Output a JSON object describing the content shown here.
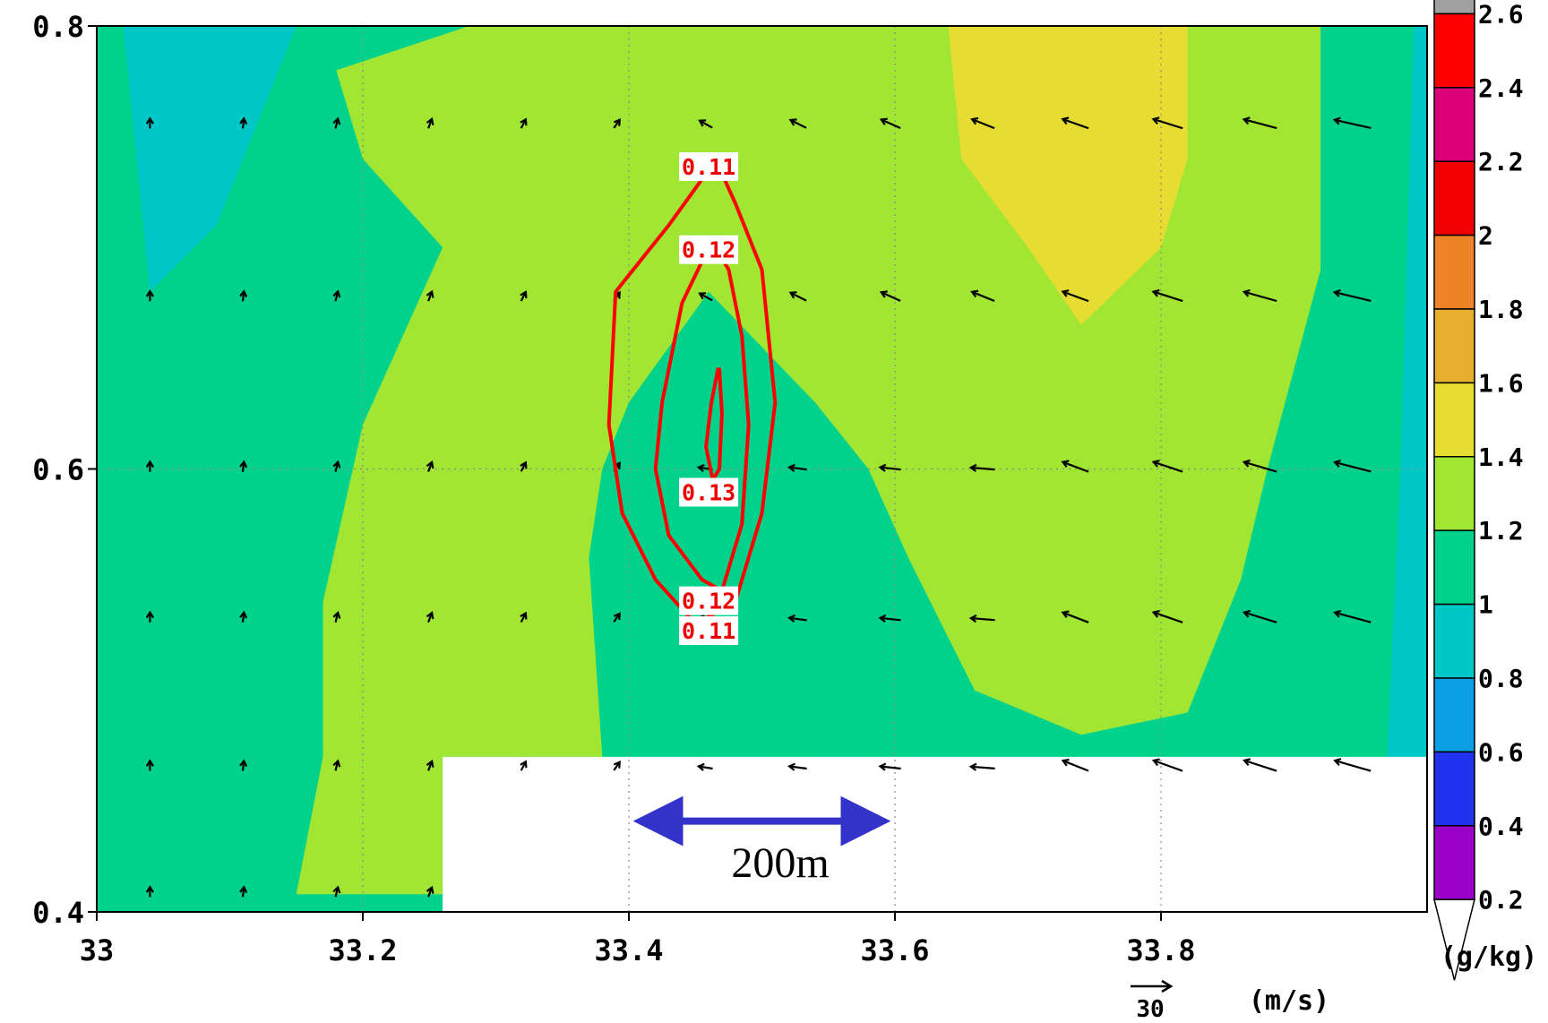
{
  "chart_data": {
    "type": "heatmap",
    "title": "",
    "xlabel": "",
    "ylabel": "",
    "xlim": [
      33.0,
      34.0
    ],
    "ylim": [
      0.4,
      0.8
    ],
    "grid": true,
    "x_ticks": [
      "33",
      "33.2",
      "33.4",
      "33.6",
      "33.8"
    ],
    "x_tick_values": [
      33.0,
      33.2,
      33.4,
      33.6,
      33.8
    ],
    "y_ticks": [
      "0.4",
      "0.6",
      "0.8"
    ],
    "y_tick_values": [
      0.4,
      0.6,
      0.8
    ],
    "colorbar": {
      "unit_label": "(g/kg)",
      "levels": [
        "0.2",
        "0.4",
        "0.6",
        "0.8",
        "1",
        "1.2",
        "1.4",
        "1.6",
        "1.8",
        "2",
        "2.2",
        "2.4",
        "2.6"
      ],
      "colors": [
        "#ffffff",
        "#9b00c8",
        "#2233f0",
        "#0ba0e6",
        "#00c8c8",
        "#00d28c",
        "#a0e632",
        "#e6dc32",
        "#e6af2d",
        "#f08228",
        "#f00000",
        "#dc0078",
        "#ff0000",
        "#a0a0a0"
      ]
    },
    "filled_regions": [
      {
        "level": "0.8-1",
        "color": "#00c8c8",
        "polygon": [
          [
            33.02,
            0.8
          ],
          [
            33.15,
            0.8
          ],
          [
            33.09,
            0.71
          ],
          [
            33.04,
            0.68
          ]
        ]
      },
      {
        "level": "0.8-1",
        "color": "#00c8c8",
        "polygon": [
          [
            33.99,
            0.8
          ],
          [
            34.0,
            0.8
          ],
          [
            34.0,
            0.47
          ],
          [
            33.97,
            0.47
          ],
          [
            33.98,
            0.6
          ]
        ]
      },
      {
        "level": "1.2-1.4",
        "color": "#a0e632",
        "polygon": [
          [
            33.28,
            0.8
          ],
          [
            33.92,
            0.8
          ],
          [
            33.92,
            0.69
          ],
          [
            33.88,
            0.6
          ],
          [
            33.86,
            0.55
          ],
          [
            33.82,
            0.49
          ],
          [
            33.74,
            0.48
          ],
          [
            33.66,
            0.5
          ],
          [
            33.61,
            0.56
          ],
          [
            33.58,
            0.6
          ],
          [
            33.54,
            0.63
          ],
          [
            33.46,
            0.68
          ],
          [
            33.4,
            0.63
          ],
          [
            33.38,
            0.6
          ],
          [
            33.37,
            0.56
          ],
          [
            33.38,
            0.47
          ],
          [
            33.26,
            0.47
          ],
          [
            33.26,
            0.408
          ],
          [
            33.15,
            0.408
          ],
          [
            33.17,
            0.47
          ],
          [
            33.17,
            0.54
          ],
          [
            33.2,
            0.62
          ],
          [
            33.26,
            0.7
          ],
          [
            33.2,
            0.74
          ],
          [
            33.18,
            0.78
          ]
        ]
      },
      {
        "level": "1.4-1.6",
        "color": "#e6dc32",
        "polygon": [
          [
            33.64,
            0.8
          ],
          [
            33.82,
            0.8
          ],
          [
            33.82,
            0.74
          ],
          [
            33.8,
            0.7
          ],
          [
            33.74,
            0.665
          ],
          [
            33.7,
            0.7
          ],
          [
            33.65,
            0.74
          ]
        ]
      }
    ],
    "background_level": "1-1.2",
    "background_color": "#00d28c",
    "masked_region": [
      [
        33.26,
        0.47
      ],
      [
        34.0,
        0.47
      ],
      [
        34.0,
        0.4
      ],
      [
        33.26,
        0.4
      ]
    ],
    "contours": [
      {
        "label": "0.11",
        "color": "#ff0000",
        "points": [
          [
            33.46,
            0.735
          ],
          [
            33.43,
            0.71
          ],
          [
            33.41,
            0.695
          ],
          [
            33.39,
            0.68
          ],
          [
            33.385,
            0.62
          ],
          [
            33.395,
            0.58
          ],
          [
            33.42,
            0.55
          ],
          [
            33.45,
            0.53
          ],
          [
            33.48,
            0.54
          ],
          [
            33.5,
            0.58
          ],
          [
            33.51,
            0.63
          ],
          [
            33.5,
            0.69
          ],
          [
            33.48,
            0.72
          ],
          [
            33.465,
            0.74
          ]
        ]
      },
      {
        "label": "0.12",
        "color": "#ff0000",
        "points": [
          [
            33.46,
            0.7
          ],
          [
            33.44,
            0.675
          ],
          [
            33.425,
            0.63
          ],
          [
            33.42,
            0.6
          ],
          [
            33.43,
            0.57
          ],
          [
            33.455,
            0.55
          ],
          [
            33.47,
            0.545
          ],
          [
            33.485,
            0.575
          ],
          [
            33.49,
            0.62
          ],
          [
            33.485,
            0.66
          ],
          [
            33.475,
            0.69
          ],
          [
            33.465,
            0.7
          ]
        ]
      },
      {
        "label": "0.13",
        "color": "#ff0000",
        "points": [
          [
            33.467,
            0.645
          ],
          [
            33.462,
            0.63
          ],
          [
            33.458,
            0.61
          ],
          [
            33.463,
            0.595
          ],
          [
            33.468,
            0.6
          ],
          [
            33.47,
            0.625
          ],
          [
            33.468,
            0.645
          ]
        ]
      }
    ],
    "contour_labels": [
      {
        "text": "0.11",
        "x": 33.46,
        "y": 0.7365
      },
      {
        "text": "0.12",
        "x": 33.46,
        "y": 0.699
      },
      {
        "text": "0.13",
        "x": 33.46,
        "y": 0.5895
      },
      {
        "text": "0.12",
        "x": 33.46,
        "y": 0.5405
      },
      {
        "text": "0.11",
        "x": 33.46,
        "y": 0.527
      }
    ],
    "vector_field": {
      "x": [
        33.04,
        33.11,
        33.18,
        33.25,
        33.32,
        33.39,
        33.46,
        33.53,
        33.6,
        33.67,
        33.74,
        33.81,
        33.88,
        33.95
      ],
      "y": [
        0.755,
        0.677,
        0.6,
        0.532,
        0.465,
        0.408
      ],
      "reference_vector": {
        "value": "30",
        "unit": "(m/s)"
      }
    },
    "annotation": {
      "text": "200m",
      "arrow_x": [
        33.4,
        33.6
      ],
      "arrow_y": 0.441,
      "color": "#3333cc"
    }
  }
}
